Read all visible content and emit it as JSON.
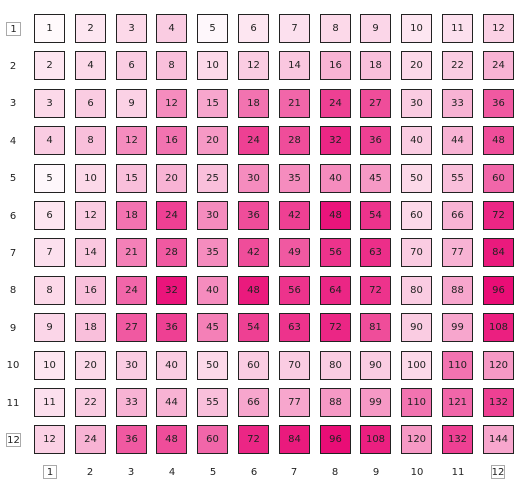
{
  "row_labels": [
    "1",
    "2",
    "3",
    "4",
    "5",
    "6",
    "7",
    "8",
    "9",
    "10",
    "11",
    "12"
  ],
  "col_labels": [
    "1",
    "2",
    "3",
    "4",
    "5",
    "6",
    "7",
    "8",
    "9",
    "10",
    "11",
    "12"
  ],
  "boxed_row_labels": [
    "1",
    "12"
  ],
  "boxed_col_labels": [
    "1",
    "12"
  ],
  "colors": {
    "low": "#ffffff",
    "high": "#e8006f",
    "border": "#222222"
  },
  "value_max": 144,
  "cells": [
    [
      "1",
      "2",
      "3",
      "4",
      "5",
      "6",
      "7",
      "8",
      "9",
      "10",
      "11",
      "12"
    ],
    [
      "2",
      "4",
      "6",
      "8",
      "10",
      "12",
      "14",
      "16",
      "18",
      "20",
      "22",
      "24"
    ],
    [
      "3",
      "6",
      "9",
      "12",
      "15",
      "18",
      "21",
      "24",
      "27",
      "30",
      "33",
      "36"
    ],
    [
      "4",
      "8",
      "12",
      "16",
      "20",
      "24",
      "28",
      "32",
      "36",
      "40",
      "44",
      "48"
    ],
    [
      "5",
      "10",
      "15",
      "20",
      "25",
      "30",
      "35",
      "40",
      "45",
      "50",
      "55",
      "60"
    ],
    [
      "6",
      "12",
      "18",
      "24",
      "30",
      "36",
      "42",
      "48",
      "54",
      "60",
      "66",
      "72"
    ],
    [
      "7",
      "14",
      "21",
      "28",
      "35",
      "42",
      "49",
      "56",
      "63",
      "70",
      "77",
      "84"
    ],
    [
      "8",
      "16",
      "24",
      "32",
      "40",
      "48",
      "56",
      "64",
      "72",
      "80",
      "88",
      "96"
    ],
    [
      "9",
      "18",
      "27",
      "36",
      "45",
      "54",
      "63",
      "72",
      "81",
      "90",
      "99",
      "108"
    ],
    [
      "10",
      "20",
      "30",
      "40",
      "50",
      "60",
      "70",
      "80",
      "90",
      "100",
      "110",
      "120"
    ],
    [
      "11",
      "22",
      "33",
      "44",
      "55",
      "66",
      "77",
      "88",
      "99",
      "110",
      "121",
      "132"
    ],
    [
      "12",
      "24",
      "36",
      "48",
      "60",
      "72",
      "84",
      "96",
      "108",
      "120",
      "132",
      "144"
    ]
  ],
  "intensity": [
    [
      0.02,
      0.1,
      0.15,
      0.2,
      0.03,
      0.1,
      0.12,
      0.15,
      0.16,
      0.1,
      0.12,
      0.18
    ],
    [
      0.1,
      0.15,
      0.2,
      0.25,
      0.15,
      0.2,
      0.22,
      0.3,
      0.25,
      0.15,
      0.2,
      0.3
    ],
    [
      0.15,
      0.2,
      0.18,
      0.45,
      0.35,
      0.55,
      0.6,
      0.75,
      0.7,
      0.2,
      0.3,
      0.65
    ],
    [
      0.2,
      0.25,
      0.45,
      0.55,
      0.4,
      0.75,
      0.7,
      0.85,
      0.75,
      0.2,
      0.3,
      0.7
    ],
    [
      0.03,
      0.15,
      0.25,
      0.3,
      0.25,
      0.45,
      0.45,
      0.45,
      0.4,
      0.15,
      0.25,
      0.6
    ],
    [
      0.1,
      0.2,
      0.55,
      0.75,
      0.45,
      0.7,
      0.75,
      0.92,
      0.8,
      0.15,
      0.3,
      0.85
    ],
    [
      0.12,
      0.22,
      0.5,
      0.65,
      0.45,
      0.7,
      0.65,
      0.8,
      0.82,
      0.2,
      0.3,
      0.9
    ],
    [
      0.15,
      0.25,
      0.6,
      0.92,
      0.45,
      0.9,
      0.8,
      0.85,
      0.8,
      0.2,
      0.35,
      0.95
    ],
    [
      0.16,
      0.25,
      0.65,
      0.75,
      0.5,
      0.75,
      0.8,
      0.85,
      0.7,
      0.2,
      0.35,
      0.88
    ],
    [
      0.1,
      0.15,
      0.2,
      0.2,
      0.15,
      0.2,
      0.2,
      0.2,
      0.2,
      0.15,
      0.55,
      0.4
    ],
    [
      0.12,
      0.2,
      0.3,
      0.3,
      0.25,
      0.35,
      0.35,
      0.4,
      0.4,
      0.55,
      0.6,
      0.75
    ],
    [
      0.18,
      0.3,
      0.65,
      0.7,
      0.6,
      0.85,
      0.9,
      0.95,
      0.88,
      0.4,
      0.75,
      0.35
    ]
  ]
}
